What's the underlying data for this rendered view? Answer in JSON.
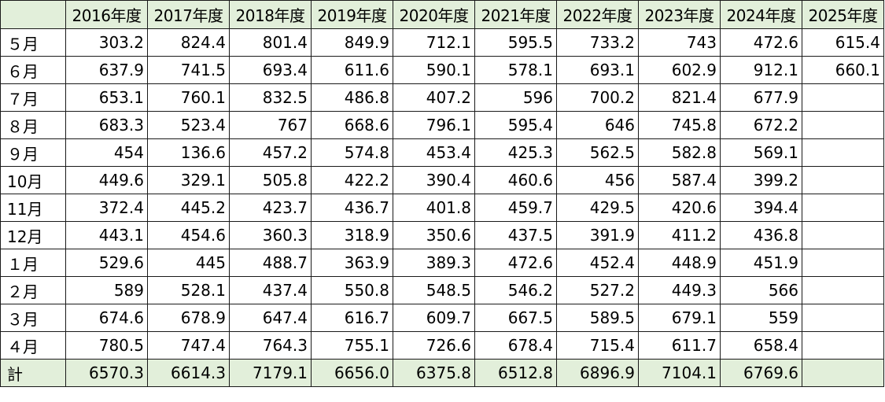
{
  "header": {
    "corner": "",
    "years": [
      "2016年度",
      "2017年度",
      "2018年度",
      "2019年度",
      "2020年度",
      "2021年度",
      "2022年度",
      "2023年度",
      "2024年度",
      "2025年度"
    ]
  },
  "rows": [
    {
      "month": "５月",
      "values": [
        "303.2",
        "824.4",
        "801.4",
        "849.9",
        "712.1",
        "595.5",
        "733.2",
        "743",
        "472.6",
        "615.4"
      ]
    },
    {
      "month": "６月",
      "values": [
        "637.9",
        "741.5",
        "693.4",
        "611.6",
        "590.1",
        "578.1",
        "693.1",
        "602.9",
        "912.1",
        "660.1"
      ]
    },
    {
      "month": "７月",
      "values": [
        "653.1",
        "760.1",
        "832.5",
        "486.8",
        "407.2",
        "596",
        "700.2",
        "821.4",
        "677.9",
        ""
      ]
    },
    {
      "month": "８月",
      "values": [
        "683.3",
        "523.4",
        "767",
        "668.6",
        "796.1",
        "595.4",
        "646",
        "745.8",
        "672.2",
        ""
      ]
    },
    {
      "month": "９月",
      "values": [
        "454",
        "136.6",
        "457.2",
        "574.8",
        "453.4",
        "425.3",
        "562.5",
        "582.8",
        "569.1",
        ""
      ]
    },
    {
      "month": "10月",
      "values": [
        "449.6",
        "329.1",
        "505.8",
        "422.2",
        "390.4",
        "460.6",
        "456",
        "587.4",
        "399.2",
        ""
      ]
    },
    {
      "month": "11月",
      "values": [
        "372.4",
        "445.2",
        "423.7",
        "436.7",
        "401.8",
        "459.7",
        "429.5",
        "420.6",
        "394.4",
        ""
      ]
    },
    {
      "month": "12月",
      "values": [
        "443.1",
        "454.6",
        "360.3",
        "318.9",
        "350.6",
        "437.5",
        "391.9",
        "411.2",
        "436.8",
        ""
      ]
    },
    {
      "month": "１月",
      "values": [
        "529.6",
        "445",
        "488.7",
        "363.9",
        "389.3",
        "472.6",
        "452.4",
        "448.9",
        "451.9",
        ""
      ]
    },
    {
      "month": "２月",
      "values": [
        "589",
        "528.1",
        "437.4",
        "550.8",
        "548.5",
        "546.2",
        "527.2",
        "449.3",
        "566",
        ""
      ]
    },
    {
      "month": "３月",
      "values": [
        "674.6",
        "678.9",
        "647.4",
        "616.7",
        "609.7",
        "667.5",
        "589.5",
        "679.1",
        "559",
        ""
      ]
    },
    {
      "month": "４月",
      "values": [
        "780.5",
        "747.4",
        "764.3",
        "755.1",
        "726.6",
        "678.4",
        "715.4",
        "611.7",
        "658.4",
        ""
      ]
    }
  ],
  "total": {
    "label": "計",
    "values": [
      "6570.3",
      "6614.3",
      "7179.1",
      "6656.0",
      "6375.8",
      "6512.8",
      "6896.9",
      "7104.1",
      "6769.6",
      ""
    ]
  },
  "colors": {
    "header_fill": "#e2efda",
    "total_fill": "#e2efda",
    "grid": "#1a1a1a"
  }
}
